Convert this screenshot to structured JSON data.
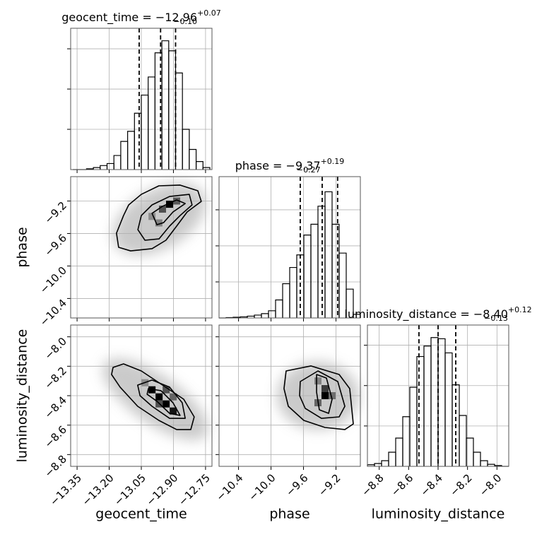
{
  "chart_data": {
    "type": "corner",
    "grid": true,
    "line_color": "#000000",
    "parameters": [
      {
        "name": "geocent_time",
        "lim": [
          -13.38,
          -12.72
        ],
        "ticks": [
          {
            "value": -13.35,
            "label": "−13.35"
          },
          {
            "value": -13.2,
            "label": "−13.20"
          },
          {
            "value": -13.05,
            "label": "−13.05"
          },
          {
            "value": -12.9,
            "label": "−12.90"
          },
          {
            "value": -12.75,
            "label": "−12.75"
          }
        ]
      },
      {
        "name": "phase",
        "lim": [
          -10.64,
          -8.9
        ],
        "ticks": [
          {
            "value": -10.4,
            "label": "−10.4"
          },
          {
            "value": -10.0,
            "label": "−10.0"
          },
          {
            "value": -9.6,
            "label": "−9.6"
          },
          {
            "value": -9.2,
            "label": "−9.2"
          }
        ]
      },
      {
        "name": "luminosity_distance",
        "lim": [
          -8.88,
          -7.92
        ],
        "ticks": [
          {
            "value": -8.8,
            "label": "−8.8"
          },
          {
            "value": -8.6,
            "label": "−8.6"
          },
          {
            "value": -8.4,
            "label": "−8.4"
          },
          {
            "value": -8.2,
            "label": "−8.2"
          },
          {
            "value": -8.0,
            "label": "−8.0"
          }
        ]
      }
    ],
    "histograms": [
      {
        "title": "geocent_time = −12.96",
        "upper": "+0.07",
        "lower": "−0.10",
        "quantiles": [
          -13.06,
          -12.96,
          -12.89
        ],
        "ylim": [
          0,
          3.51
        ],
        "yticks": [
          1,
          2,
          3
        ],
        "bins": [
          -13.37,
          -13.338,
          -13.306,
          -13.274,
          -13.242,
          -13.21,
          -13.178,
          -13.146,
          -13.114,
          -13.082,
          -13.05,
          -13.018,
          -12.986,
          -12.954,
          -12.922,
          -12.89,
          -12.858,
          -12.826,
          -12.794,
          -12.762,
          -12.73
        ],
        "counts": [
          0,
          0,
          0.02,
          0.05,
          0.1,
          0.15,
          0.35,
          0.7,
          0.95,
          1.4,
          1.85,
          2.3,
          2.9,
          3.2,
          2.95,
          2.4,
          1.0,
          0.5,
          0.2,
          0.05
        ]
      },
      {
        "title": "phase = −9.37",
        "upper": "+0.19",
        "lower": "−0.27",
        "quantiles": [
          -9.64,
          -9.37,
          -9.18
        ],
        "ylim": [
          0,
          3.92
        ],
        "yticks": [
          1,
          2,
          3
        ],
        "bins": [
          -10.64,
          -10.553,
          -10.466,
          -10.379,
          -10.292,
          -10.205,
          -10.118,
          -10.031,
          -9.944,
          -9.857,
          -9.77,
          -9.683,
          -9.596,
          -9.509,
          -9.422,
          -9.335,
          -9.248,
          -9.161,
          -9.074,
          -8.987,
          -8.9
        ],
        "counts": [
          0,
          0.01,
          0.02,
          0.03,
          0.05,
          0.08,
          0.12,
          0.2,
          0.5,
          0.95,
          1.4,
          1.75,
          2.3,
          2.6,
          3.1,
          3.5,
          2.6,
          1.8,
          0.8,
          0.1
        ]
      },
      {
        "title": "luminosity_distance = −8.40",
        "upper": "+0.12",
        "lower": "−0.13",
        "quantiles": [
          -8.53,
          -8.4,
          -8.28
        ],
        "ylim": [
          0,
          3.5
        ],
        "yticks": [
          1,
          2,
          3
        ],
        "bins": [
          -8.88,
          -8.832,
          -8.784,
          -8.736,
          -8.688,
          -8.64,
          -8.592,
          -8.544,
          -8.496,
          -8.448,
          -8.4,
          -8.352,
          -8.304,
          -8.256,
          -8.208,
          -8.16,
          -8.112,
          -8.064,
          -8.016,
          -7.968,
          -7.92
        ],
        "counts": [
          0.04,
          0.07,
          0.14,
          0.35,
          0.7,
          1.23,
          1.96,
          2.72,
          2.98,
          3.19,
          3.16,
          2.81,
          2.02,
          1.26,
          0.7,
          0.35,
          0.14,
          0.05,
          0.02,
          0
        ]
      }
    ],
    "pairs": [
      {
        "contours": [
          {
            "x": [
              -13.156,
              -13.166,
              -13.133,
              -13.109,
              -13.05,
              -12.968,
              -12.869,
              -12.786,
              -12.77,
              -12.836,
              -12.885,
              -12.935,
              -13.0,
              -13.1
            ],
            "y": [
              -9.77,
              -9.596,
              -9.379,
              -9.248,
              -9.118,
              -9.013,
              -9.004,
              -9.074,
              -9.205,
              -9.335,
              -9.509,
              -9.683,
              -9.787,
              -9.814
            ]
          },
          {
            "x": [
              -13.066,
              -13.05,
              -13.0,
              -12.918,
              -12.826,
              -12.813,
              -12.869,
              -12.918,
              -12.967,
              -13.033
            ],
            "y": [
              -9.553,
              -9.379,
              -9.248,
              -9.144,
              -9.118,
              -9.248,
              -9.379,
              -9.509,
              -9.666,
              -9.683
            ]
          },
          {
            "x": [
              -13.0,
              -12.951,
              -12.885,
              -12.845,
              -12.902,
              -12.946,
              -12.977
            ],
            "y": [
              -9.352,
              -9.265,
              -9.187,
              -9.231,
              -9.335,
              -9.466,
              -9.492
            ]
          }
        ],
        "cells": {
          "x": [
            -12.918,
            -12.951,
            -12.885,
            -13.0,
            -12.968
          ],
          "y": [
            -9.24,
            -9.3,
            -9.2,
            -9.39,
            -9.47
          ],
          "density": [
            1.0,
            0.6,
            0.55,
            0.3,
            0.35
          ]
        }
      },
      {
        "contours": [
          {
            "x": [
              -13.182,
              -13.133,
              -13.05,
              -12.951,
              -12.852,
              -12.803,
              -12.819,
              -12.885,
              -12.968,
              -13.067,
              -13.149,
              -13.189
            ],
            "y": [
              -8.208,
              -8.184,
              -8.232,
              -8.328,
              -8.424,
              -8.544,
              -8.63,
              -8.63,
              -8.568,
              -8.472,
              -8.342,
              -8.256
            ]
          },
          {
            "x": [
              -13.067,
              -13.0,
              -12.918,
              -12.859,
              -12.845,
              -12.918,
              -13.0,
              -13.056
            ],
            "y": [
              -8.328,
              -8.294,
              -8.342,
              -8.448,
              -8.554,
              -8.554,
              -8.472,
              -8.4
            ]
          },
          {
            "x": [
              -13.017,
              -12.958,
              -12.902,
              -12.869,
              -12.918,
              -12.977,
              -13.023
            ],
            "y": [
              -8.352,
              -8.366,
              -8.448,
              -8.534,
              -8.52,
              -8.438,
              -8.39
            ]
          }
        ],
        "cells": {
          "x": [
            -13.0,
            -12.967,
            -12.934,
            -12.901,
            -12.934,
            -12.967,
            -12.901,
            -13.033
          ],
          "y": [
            -8.36,
            -8.408,
            -8.456,
            -8.504,
            -8.36,
            -8.456,
            -8.408,
            -8.312
          ],
          "density": [
            1.0,
            1.0,
            1.0,
            0.9,
            0.6,
            0.6,
            0.5,
            0.3
          ]
        }
      },
      {
        "contours": [
          {
            "x": [
              -9.814,
              -9.509,
              -9.161,
              -9.031,
              -8.987,
              -9.091,
              -9.335,
              -9.596,
              -9.787,
              -9.84
            ],
            "y": [
              -8.232,
              -8.198,
              -8.256,
              -8.352,
              -8.592,
              -8.63,
              -8.616,
              -8.568,
              -8.472,
              -8.352
            ]
          },
          {
            "x": [
              -9.64,
              -9.422,
              -9.178,
              -9.091,
              -9.161,
              -9.379,
              -9.579,
              -9.648
            ],
            "y": [
              -8.304,
              -8.232,
              -8.304,
              -8.472,
              -8.544,
              -8.554,
              -8.486,
              -8.4
            ]
          },
          {
            "x": [
              -9.439,
              -9.318,
              -9.248,
              -9.291,
              -9.405,
              -9.439
            ],
            "y": [
              -8.256,
              -8.28,
              -8.424,
              -8.52,
              -8.496,
              -8.376
            ]
          }
        ],
        "cells": {
          "x": [
            -9.335,
            -9.335,
            -9.422,
            -9.248,
            -9.422
          ],
          "y": [
            -8.4,
            -8.352,
            -8.448,
            -8.4,
            -8.3
          ],
          "density": [
            1.0,
            0.7,
            0.5,
            0.45,
            0.35
          ]
        }
      }
    ]
  }
}
